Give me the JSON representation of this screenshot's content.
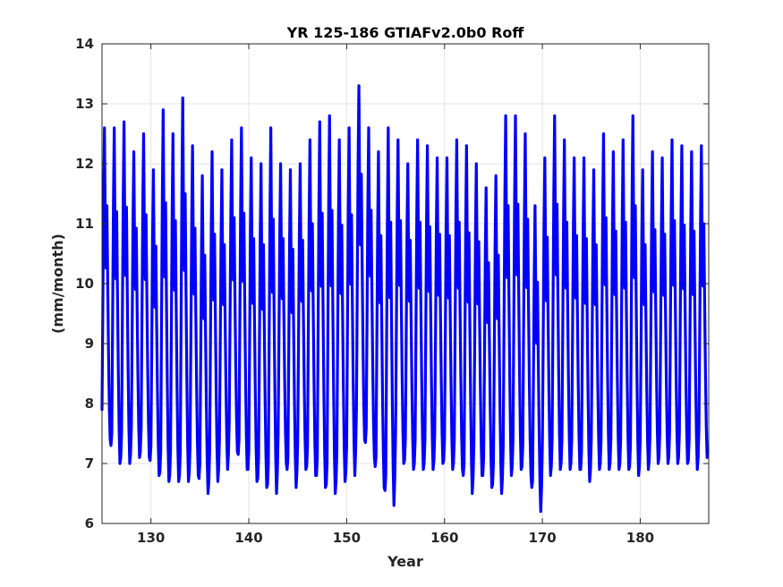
{
  "chart_data": {
    "type": "line",
    "title": "YR 125-186 GTIAFv2.0b0 Roff",
    "xlabel": "Year",
    "ylabel": "(mm/month)",
    "xlim": [
      125,
      187
    ],
    "ylim": [
      6,
      14
    ],
    "xticks": [
      130,
      140,
      150,
      160,
      170,
      180
    ],
    "yticks": [
      6,
      7,
      8,
      9,
      10,
      11,
      12,
      13,
      14
    ],
    "grid": true,
    "legend": "none",
    "series": [
      {
        "color": "#0000ff",
        "annual_cycle_years": [
          125,
          126,
          127,
          128,
          129,
          130,
          131,
          132,
          133,
          134,
          135,
          136,
          137,
          138,
          139,
          140,
          141,
          142,
          143,
          144,
          145,
          146,
          147,
          148,
          149,
          150,
          151,
          152,
          153,
          154,
          155,
          156,
          157,
          158,
          159,
          160,
          161,
          162,
          163,
          164,
          165,
          166,
          167,
          168,
          169,
          170,
          171,
          172,
          173,
          174,
          175,
          176,
          177,
          178,
          179,
          180,
          181,
          182,
          183,
          184,
          185,
          186
        ],
        "annual_peaks": [
          12.6,
          12.6,
          12.7,
          12.2,
          12.5,
          11.9,
          12.9,
          12.5,
          13.1,
          12.3,
          11.8,
          12.2,
          11.9,
          12.4,
          12.6,
          12.1,
          12.0,
          12.6,
          12.0,
          11.9,
          12.0,
          12.4,
          12.7,
          12.8,
          12.4,
          12.6,
          13.3,
          12.6,
          12.2,
          12.6,
          12.4,
          12.0,
          12.4,
          12.3,
          12.1,
          12.1,
          12.4,
          12.3,
          12.0,
          11.6,
          11.8,
          12.8,
          12.8,
          12.5,
          11.3,
          12.1,
          12.8,
          12.4,
          12.1,
          12.1,
          11.9,
          12.5,
          12.2,
          12.4,
          12.8,
          11.9,
          12.2,
          12.1,
          12.4,
          12.3,
          12.2,
          12.3
        ],
        "annual_troughs": [
          7.4,
          7.0,
          7.0,
          7.1,
          7.1,
          6.8,
          6.7,
          6.7,
          6.7,
          6.8,
          6.5,
          6.7,
          6.9,
          7.2,
          6.9,
          6.7,
          6.6,
          6.5,
          7.0,
          6.6,
          6.9,
          6.8,
          6.6,
          6.5,
          6.7,
          6.8,
          7.4,
          7.1,
          6.6,
          6.3,
          7.0,
          6.9,
          6.9,
          6.9,
          7.0,
          6.9,
          6.9,
          6.5,
          6.8,
          6.6,
          6.5,
          6.8,
          6.9,
          6.8,
          6.2,
          6.8,
          6.9,
          6.9,
          6.9,
          6.7,
          6.9,
          6.9,
          6.9,
          6.9,
          6.8,
          6.9,
          7.0,
          7.0,
          7.0,
          7.0,
          6.9,
          7.1
        ]
      }
    ]
  }
}
